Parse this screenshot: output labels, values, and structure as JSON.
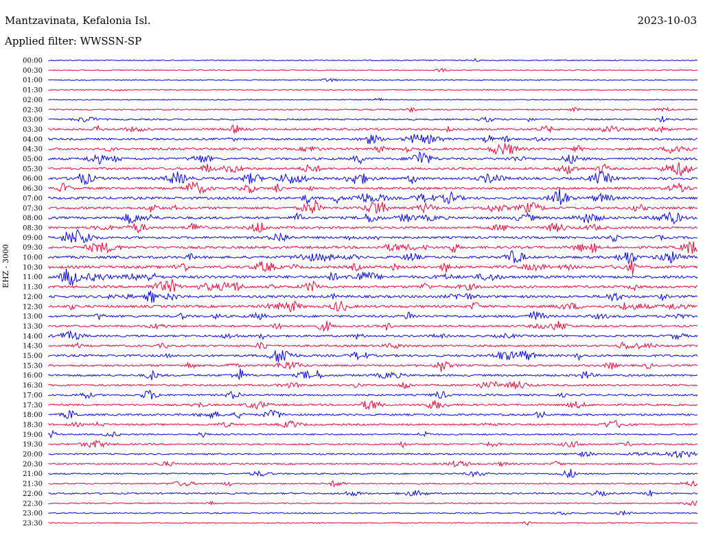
{
  "header": {
    "station": "Mantzavinata, Kefalonia Isl.",
    "date": "2023-10-03",
    "filter": "Applied filter: WWSSN-SP"
  },
  "chart_data": {
    "type": "line",
    "title": "Mantzavinata, Kefalonia Isl.",
    "subtitle": "Applied filter: WWSSN-SP",
    "ylabel": "EHZ - 3000",
    "xlabel": "",
    "grid": false,
    "legend": "none",
    "colors": {
      "odd_trace": "#0000ee",
      "even_trace": "#ee0033"
    },
    "series": [
      {
        "row": "00:00",
        "activity": 0.05
      },
      {
        "row": "00:30",
        "activity": 0.05
      },
      {
        "row": "01:00",
        "activity": 0.05
      },
      {
        "row": "01:30",
        "activity": 0.05
      },
      {
        "row": "02:00",
        "activity": 0.05
      },
      {
        "row": "02:30",
        "activity": 0.2
      },
      {
        "row": "03:00",
        "activity": 0.3
      },
      {
        "row": "03:30",
        "activity": 0.5
      },
      {
        "row": "04:00",
        "activity": 0.5
      },
      {
        "row": "04:30",
        "activity": 0.6
      },
      {
        "row": "05:00",
        "activity": 0.6
      },
      {
        "row": "05:30",
        "activity": 0.6
      },
      {
        "row": "06:00",
        "activity": 0.7
      },
      {
        "row": "06:30",
        "activity": 0.6
      },
      {
        "row": "07:00",
        "activity": 0.7
      },
      {
        "row": "07:30",
        "activity": 0.7
      },
      {
        "row": "08:00",
        "activity": 0.7
      },
      {
        "row": "08:30",
        "activity": 0.6
      },
      {
        "row": "09:00",
        "activity": 0.6
      },
      {
        "row": "09:30",
        "activity": 0.7
      },
      {
        "row": "10:00",
        "activity": 0.7
      },
      {
        "row": "10:30",
        "activity": 0.8
      },
      {
        "row": "11:00",
        "activity": 0.8
      },
      {
        "row": "11:30",
        "activity": 0.7
      },
      {
        "row": "12:00",
        "activity": 0.7
      },
      {
        "row": "12:30",
        "activity": 0.7
      },
      {
        "row": "13:00",
        "activity": 0.6
      },
      {
        "row": "13:30",
        "activity": 0.5
      },
      {
        "row": "14:00",
        "activity": 0.5
      },
      {
        "row": "14:30",
        "activity": 0.5
      },
      {
        "row": "15:00",
        "activity": 0.6
      },
      {
        "row": "15:30",
        "activity": 0.5
      },
      {
        "row": "16:00",
        "activity": 0.5
      },
      {
        "row": "16:30",
        "activity": 0.45
      },
      {
        "row": "17:00",
        "activity": 0.4
      },
      {
        "row": "17:30",
        "activity": 0.45
      },
      {
        "row": "18:00",
        "activity": 0.45
      },
      {
        "row": "18:30",
        "activity": 0.4
      },
      {
        "row": "19:00",
        "activity": 0.3
      },
      {
        "row": "19:30",
        "activity": 0.35
      },
      {
        "row": "20:00",
        "activity": 0.3
      },
      {
        "row": "20:30",
        "activity": 0.25
      },
      {
        "row": "21:00",
        "activity": 0.25
      },
      {
        "row": "21:30",
        "activity": 0.25
      },
      {
        "row": "22:00",
        "activity": 0.3
      },
      {
        "row": "22:30",
        "activity": 0.15
      },
      {
        "row": "23:00",
        "activity": 0.15
      },
      {
        "row": "23:30",
        "activity": 0.1
      }
    ]
  }
}
